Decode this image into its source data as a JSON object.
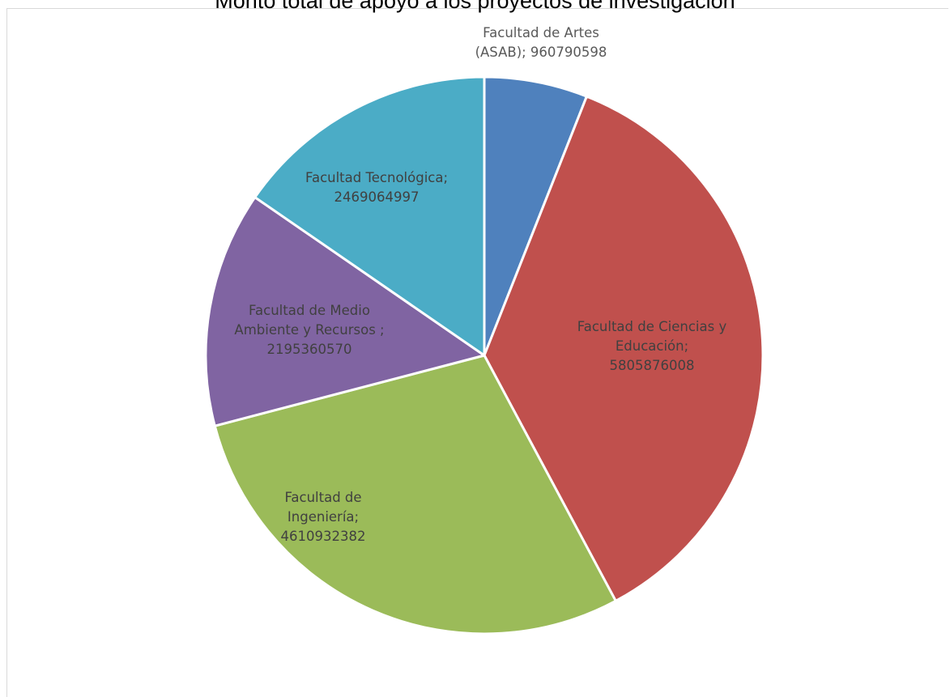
{
  "chart_data": {
    "type": "pie",
    "title": "Monto total de apoyo a los proyectos de investigación",
    "slices": [
      {
        "name": "Facultad de Artes (ASAB)",
        "value": 960790598,
        "label_lines": [
          "Facultad de Artes",
          "(ASAB); 960790598"
        ],
        "color": "#4f81bd",
        "label_color": "#595959"
      },
      {
        "name": "Facultad de Ciencias y Educación",
        "value": 5805876008,
        "label_lines": [
          "Facultad de Ciencias y",
          "Educación;",
          "5805876008"
        ],
        "color": "#c0504d",
        "label_color": "#404040"
      },
      {
        "name": "Facultad de Ingeniería",
        "value": 4610932382,
        "label_lines": [
          "Facultad de",
          "Ingeniería;",
          "4610932382"
        ],
        "color": "#9bbb59",
        "label_color": "#404040"
      },
      {
        "name": "Facultad de Medio Ambiente y Recursos",
        "value": 2195360570,
        "label_lines": [
          "Facultad de Medio",
          "Ambiente y Recursos ;",
          "2195360570"
        ],
        "color": "#8064a2",
        "label_color": "#404040"
      },
      {
        "name": "Facultad Tecnológica",
        "value": 2469064997,
        "label_lines": [
          "Facultad Tecnológica;",
          "2469064997"
        ],
        "color": "#4bacc6",
        "label_color": "#404040"
      }
    ],
    "start_angle_deg": 0,
    "direction": "clockwise",
    "legend": "none"
  }
}
